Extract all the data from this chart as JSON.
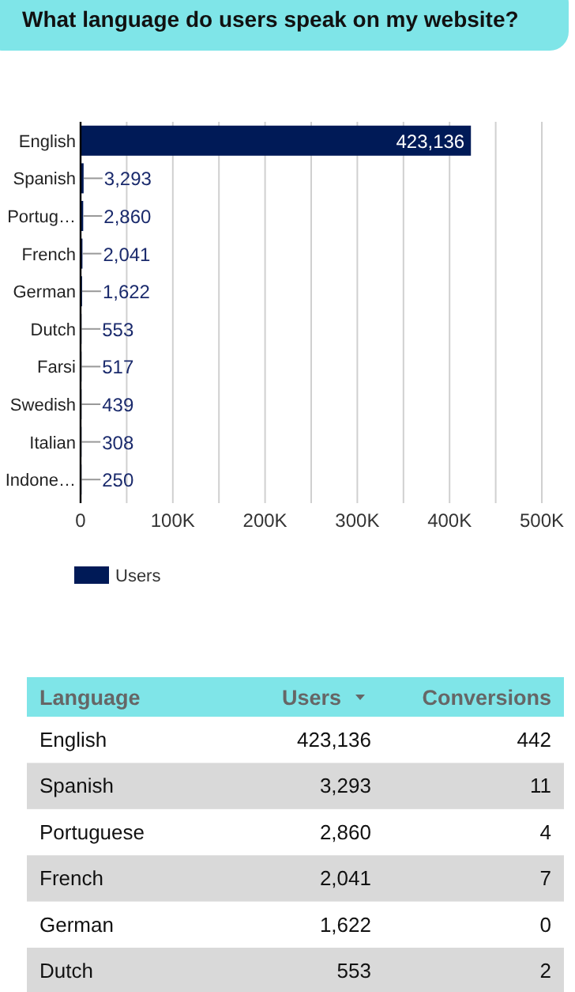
{
  "chart_data": [
    {
      "type": "bar",
      "orientation": "horizontal",
      "title": "What language do users speak on my website?",
      "categories": [
        "English",
        "Spanish",
        "Portug…",
        "French",
        "German",
        "Dutch",
        "Farsi",
        "Swedish",
        "Italian",
        "Indone…"
      ],
      "series": [
        {
          "name": "Users",
          "color": "#001a57",
          "values": [
            423136,
            3293,
            2860,
            2041,
            1622,
            553,
            517,
            439,
            308,
            250
          ],
          "value_labels": [
            "423,136",
            "3,293",
            "2,860",
            "2,041",
            "1,622",
            "553",
            "517",
            "439",
            "308",
            "250"
          ]
        }
      ],
      "xlim": [
        0,
        500000
      ],
      "xticks": [
        0,
        {
          "value": 50000,
          "label": null
        },
        {
          "value": 100000,
          "label": "100K"
        },
        {
          "value": 150000,
          "label": null
        },
        {
          "value": 200000,
          "label": "200K"
        },
        {
          "value": 250000,
          "label": null
        },
        {
          "value": 300000,
          "label": "300K"
        },
        {
          "value": 350000,
          "label": null
        },
        {
          "value": 400000,
          "label": "400K"
        },
        {
          "value": 450000,
          "label": null
        },
        {
          "value": 500000,
          "label": "500K"
        }
      ],
      "grid": "x",
      "legend": "bottom left"
    },
    {
      "type": "other",
      "xlabel": "Language",
      "categories": [
        "English",
        "Spanish",
        "Portuguese",
        "French",
        "German",
        "Dutch"
      ],
      "series": [
        {
          "name": "Users",
          "values": [
            423136,
            3293,
            2860,
            2041,
            1622,
            553
          ],
          "value_labels": [
            "423,136",
            "3,293",
            "2,860",
            "2,041",
            "1,622",
            "553"
          ]
        },
        {
          "name": "Conversions",
          "values": [
            442,
            11,
            4,
            7,
            0,
            2
          ],
          "value_labels": [
            "442",
            "11",
            "4",
            "7",
            "0",
            "2"
          ]
        }
      ],
      "data_labels": true
    }
  ]
}
